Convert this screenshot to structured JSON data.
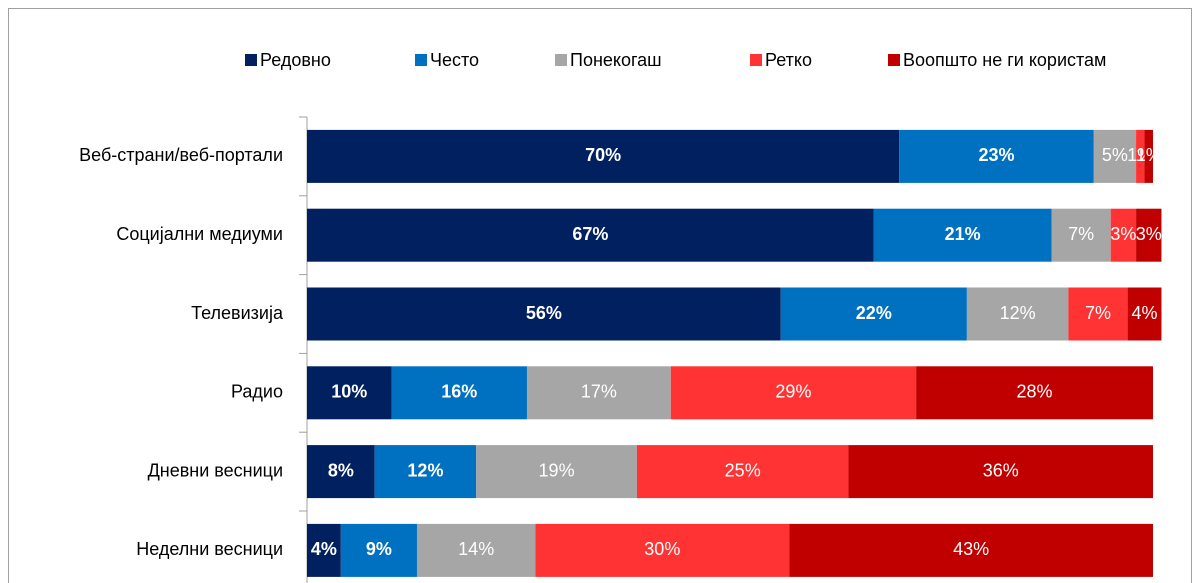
{
  "chart_data": {
    "type": "stacked-barh",
    "categories": [
      "Веб-страни/веб-портали",
      "Социјални медиуми",
      "Телевизија",
      "Радио",
      "Дневни весници",
      "Неделни весници"
    ],
    "series": [
      {
        "name": "Редовно",
        "color": "#002060",
        "values": [
          70,
          67,
          56,
          10,
          8,
          4
        ],
        "value_labels": [
          "70%",
          "67%",
          "56%",
          "10%",
          "8%",
          "4%"
        ]
      },
      {
        "name": "Често",
        "color": "#0070c0",
        "values": [
          23,
          21,
          22,
          16,
          12,
          9
        ],
        "value_labels": [
          "23%",
          "21%",
          "22%",
          "16%",
          "12%",
          "9%"
        ]
      },
      {
        "name": "Понекогаш",
        "color": "#a6a6a6",
        "values": [
          5,
          7,
          12,
          17,
          19,
          14
        ],
        "value_labels": [
          "5%",
          "7%",
          "12%",
          "17%",
          "19%",
          "14%"
        ]
      },
      {
        "name": "Ретко",
        "color": "#ff3333",
        "values": [
          1,
          3,
          7,
          29,
          25,
          30
        ],
        "value_labels": [
          "1%",
          "3%",
          "7%",
          "29%",
          "25%",
          "30%"
        ]
      },
      {
        "name": "Воопшто не ги користам",
        "color": "#c00000",
        "values": [
          1,
          3,
          4,
          28,
          36,
          43
        ],
        "value_labels": [
          "1%",
          "3%",
          "4%",
          "28%",
          "36%",
          "43%"
        ]
      }
    ],
    "xlim": [
      0,
      100
    ],
    "legend": "top"
  }
}
